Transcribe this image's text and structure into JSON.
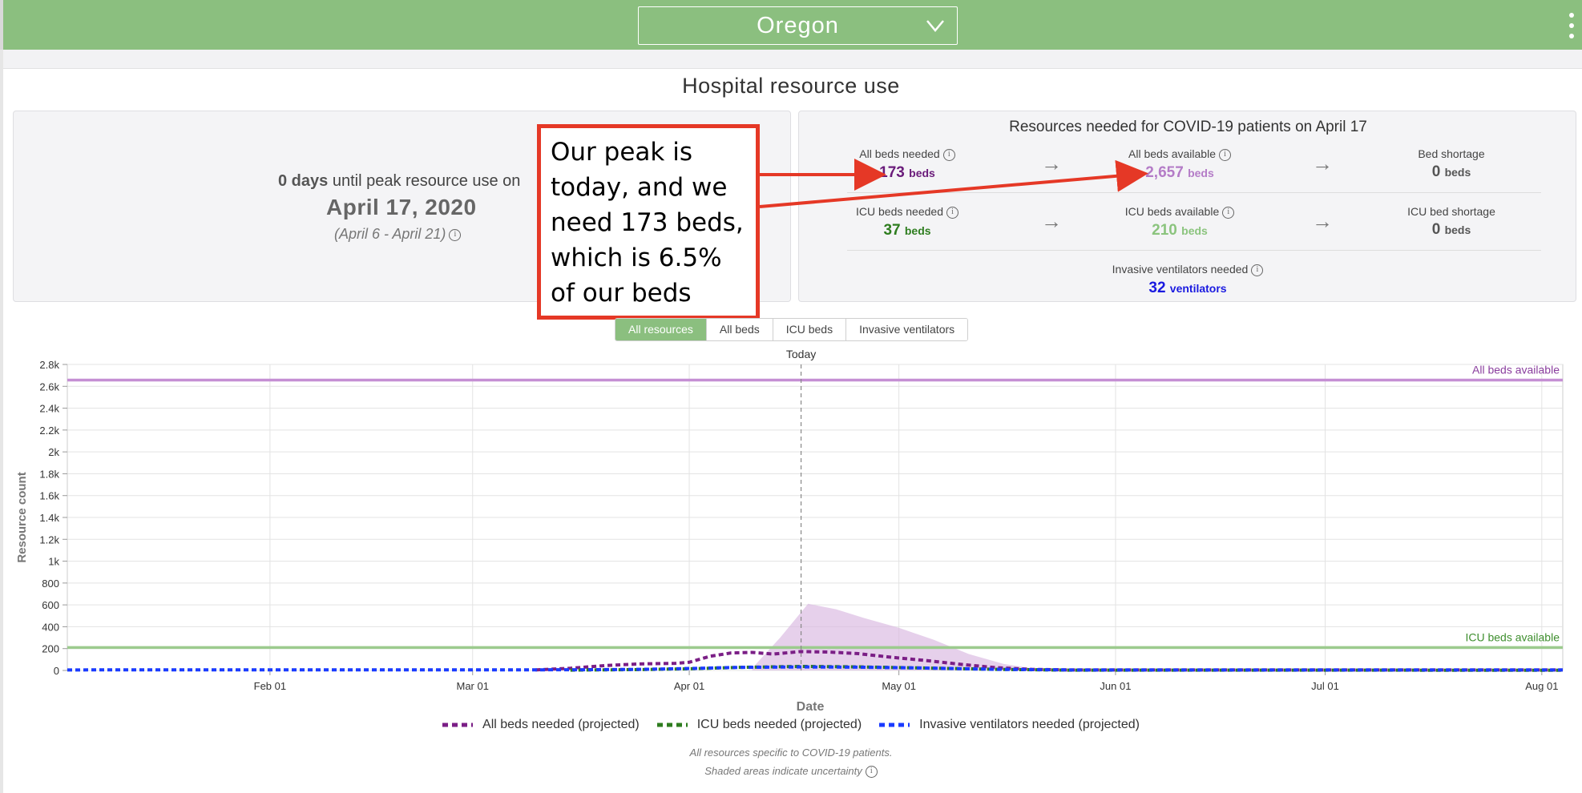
{
  "header": {
    "state": "Oregon",
    "accent_color": "#8bbf7f"
  },
  "title": "Hospital resource use",
  "peak": {
    "days": "0 days",
    "text": "until peak resource use on",
    "date": "April 17, 2020",
    "range": "(April 6 - April 21)"
  },
  "resources": {
    "title": "Resources needed for COVID-19 patients on April 17",
    "all_beds_needed": {
      "label": "All beds needed",
      "value": "173",
      "unit": "beds",
      "color": "#6a1b7a"
    },
    "all_beds_available": {
      "label": "All beds available",
      "value": "2,657",
      "unit": "beds",
      "color": "#b47cc7"
    },
    "bed_shortage": {
      "label": "Bed shortage",
      "value": "0",
      "unit": "beds",
      "color": "#555555"
    },
    "icu_needed": {
      "label": "ICU beds needed",
      "value": "37",
      "unit": "beds",
      "color": "#2e7d1f"
    },
    "icu_available": {
      "label": "ICU beds available",
      "value": "210",
      "unit": "beds",
      "color": "#8bc47e"
    },
    "icu_shortage": {
      "label": "ICU bed shortage",
      "value": "0",
      "unit": "beds",
      "color": "#555555"
    },
    "ventilators": {
      "label": "Invasive ventilators needed",
      "value": "32",
      "unit": "ventilators",
      "color": "#1a1ae0"
    }
  },
  "annotation": {
    "text": "Our peak is today, and we need 173 beds, which is 6.5% of our beds",
    "border_color": "#e53826"
  },
  "tabs": [
    "All resources",
    "All beds",
    "ICU beds",
    "Invasive ventilators"
  ],
  "active_tab": "All resources",
  "chart_data": {
    "type": "line",
    "xlabel": "Date",
    "ylabel": "Resource count",
    "today_label": "Today",
    "x_ticks": [
      "Feb 01",
      "Mar 01",
      "Apr 01",
      "May 01",
      "Jun 01",
      "Jul 01",
      "Aug 01"
    ],
    "y_ticks": [
      "0",
      "200",
      "400",
      "600",
      "800",
      "1k",
      "1.2k",
      "1.4k",
      "1.6k",
      "1.8k",
      "2k",
      "2.2k",
      "2.4k",
      "2.6k",
      "2.8k"
    ],
    "ylim": [
      0,
      2800
    ],
    "xlim": [
      "2020-01-03",
      "2020-08-04"
    ],
    "today": "2020-04-17",
    "grid": true,
    "reference_lines": [
      {
        "name": "All beds available",
        "value": 2657,
        "color": "#c58fd4"
      },
      {
        "name": "ICU beds available",
        "value": 210,
        "color": "#9ccb8e"
      }
    ],
    "series": [
      {
        "name": "All beds needed (projected)",
        "color": "#7b1f86",
        "x": [
          "2020-03-10",
          "2020-03-15",
          "2020-03-20",
          "2020-03-25",
          "2020-03-30",
          "2020-04-01",
          "2020-04-04",
          "2020-04-07",
          "2020-04-10",
          "2020-04-13",
          "2020-04-17",
          "2020-04-21",
          "2020-04-25",
          "2020-04-30",
          "2020-05-05",
          "2020-05-10",
          "2020-05-15",
          "2020-05-20",
          "2020-05-25",
          "2020-08-04"
        ],
        "values": [
          5,
          20,
          45,
          60,
          65,
          75,
          130,
          160,
          165,
          150,
          173,
          168,
          155,
          120,
          90,
          55,
          25,
          10,
          5,
          5
        ]
      },
      {
        "name": "ICU beds needed (projected)",
        "color": "#2e7d1f",
        "x": [
          "2020-03-15",
          "2020-03-25",
          "2020-04-01",
          "2020-04-08",
          "2020-04-17",
          "2020-04-25",
          "2020-05-05",
          "2020-05-15",
          "2020-05-25",
          "2020-08-04"
        ],
        "values": [
          3,
          8,
          15,
          28,
          37,
          33,
          22,
          10,
          3,
          2
        ]
      },
      {
        "name": "Invasive ventilators needed (projected)",
        "color": "#1a3bff",
        "x": [
          "2020-01-03",
          "2020-03-15",
          "2020-03-25",
          "2020-04-01",
          "2020-04-08",
          "2020-04-17",
          "2020-04-25",
          "2020-05-05",
          "2020-05-15",
          "2020-05-25",
          "2020-08-04"
        ],
        "values": [
          5,
          6,
          10,
          18,
          28,
          32,
          30,
          22,
          10,
          5,
          5
        ]
      }
    ],
    "uncertainty": {
      "color": "#d9b7e0",
      "x": [
        "2020-04-10",
        "2020-04-14",
        "2020-04-18",
        "2020-04-22",
        "2020-04-26",
        "2020-05-01",
        "2020-05-06",
        "2020-05-11",
        "2020-05-16",
        "2020-05-21"
      ],
      "upper": [
        20,
        300,
        610,
        560,
        480,
        390,
        280,
        150,
        60,
        10
      ]
    }
  },
  "legend": [
    {
      "label": "All beds needed (projected)",
      "color": "#7b1f86"
    },
    {
      "label": "ICU beds needed (projected)",
      "color": "#2e7d1f"
    },
    {
      "label": "Invasive ventilators needed (projected)",
      "color": "#1a3bff"
    }
  ],
  "notes": {
    "line1": "All resources specific to COVID-19 patients.",
    "line2": "Shaded areas indicate uncertainty"
  }
}
